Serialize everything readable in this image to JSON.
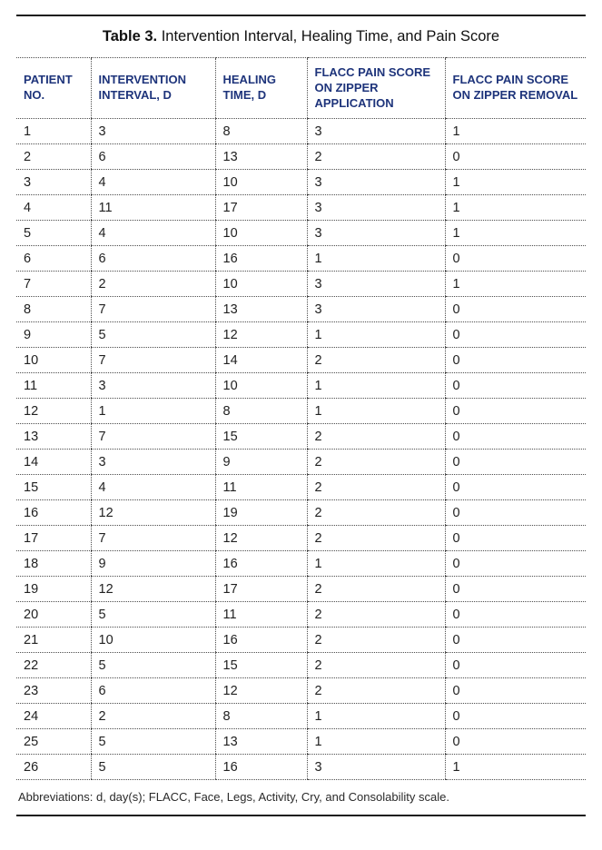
{
  "title": {
    "bold": "Table 3.",
    "rest": " Intervention Interval, Healing Time, and Pain Score"
  },
  "table": {
    "columns": [
      "PATIENT NO.",
      "INTERVENTION INTERVAL, D",
      "HEALING TIME, D",
      "FLACC PAIN SCORE ON ZIPPER APPLICATION",
      "FLACC PAIN SCORE ON ZIPPER REMOVAL"
    ],
    "rows": [
      [
        1,
        3,
        8,
        3,
        1
      ],
      [
        2,
        6,
        13,
        2,
        0
      ],
      [
        3,
        4,
        10,
        3,
        1
      ],
      [
        4,
        11,
        17,
        3,
        1
      ],
      [
        5,
        4,
        10,
        3,
        1
      ],
      [
        6,
        6,
        16,
        1,
        0
      ],
      [
        7,
        2,
        10,
        3,
        1
      ],
      [
        8,
        7,
        13,
        3,
        0
      ],
      [
        9,
        5,
        12,
        1,
        0
      ],
      [
        10,
        7,
        14,
        2,
        0
      ],
      [
        11,
        3,
        10,
        1,
        0
      ],
      [
        12,
        1,
        8,
        1,
        0
      ],
      [
        13,
        7,
        15,
        2,
        0
      ],
      [
        14,
        3,
        9,
        2,
        0
      ],
      [
        15,
        4,
        11,
        2,
        0
      ],
      [
        16,
        12,
        19,
        2,
        0
      ],
      [
        17,
        7,
        12,
        2,
        0
      ],
      [
        18,
        9,
        16,
        1,
        0
      ],
      [
        19,
        12,
        17,
        2,
        0
      ],
      [
        20,
        5,
        11,
        2,
        0
      ],
      [
        21,
        10,
        16,
        2,
        0
      ],
      [
        22,
        5,
        15,
        2,
        0
      ],
      [
        23,
        6,
        12,
        2,
        0
      ],
      [
        24,
        2,
        8,
        1,
        0
      ],
      [
        25,
        5,
        13,
        1,
        0
      ],
      [
        26,
        5,
        16,
        3,
        1
      ]
    ]
  },
  "footnote": {
    "text": "Abbreviations: d, day(s); FLACC, Face, Legs, Activity, Cry, and Consolability scale."
  },
  "colors": {
    "header_text": "#1e347b",
    "body_text": "#212121",
    "rule": "#1a1a1a",
    "dotted_line": "#4d4d4d"
  }
}
